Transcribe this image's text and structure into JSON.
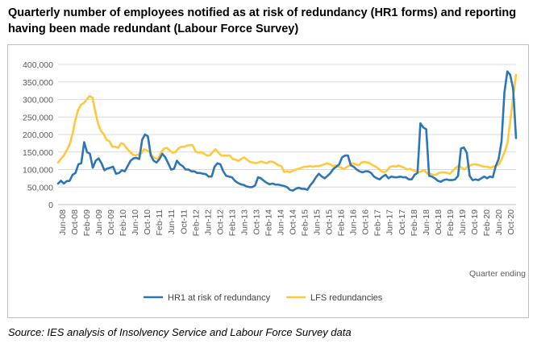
{
  "title": "Quarterly number of employees notified as at risk of redundancy (HR1 forms) and reporting having been made redundant (Labour Force Survey)",
  "source": "Source: IES analysis of Insolvency Service and Labour Force Survey data",
  "chart_data": {
    "type": "line",
    "xlabel": "Quarter ending",
    "ylabel": "",
    "ylim": [
      0,
      400000
    ],
    "yticks": [
      "0",
      "50,000",
      "100,000",
      "150,000",
      "200,000",
      "250,000",
      "300,000",
      "350,000",
      "400,000"
    ],
    "xtick_labels": [
      "Jun-08",
      "Oct-08",
      "Feb-09",
      "Jun-09",
      "Oct-09",
      "Feb-10",
      "Jun-10",
      "Oct-10",
      "Feb-11",
      "Jun-11",
      "Oct-11",
      "Feb-12",
      "Jun-12",
      "Oct-12",
      "Feb-13",
      "Jun-13",
      "Oct-13",
      "Feb-14",
      "Jun-14",
      "Oct-14",
      "Feb-15",
      "Jun-15",
      "Oct-15",
      "Feb-16",
      "Jun-16",
      "Oct-16",
      "Feb-17",
      "Jun-17",
      "Oct-17",
      "Feb-18",
      "Jun-18",
      "Oct-18",
      "Feb-19",
      "Jun-19",
      "Oct-19",
      "Feb-20",
      "Jun-20",
      "Oct-20"
    ],
    "grid": "horizontal",
    "legend": "bottom",
    "series": [
      {
        "name": "HR1 at risk of redundancy",
        "color": "#2e75b6",
        "values": [
          60000,
          68000,
          60000,
          67000,
          68000,
          85000,
          90000,
          115000,
          118000,
          178000,
          150000,
          145000,
          105000,
          125000,
          132000,
          118000,
          98000,
          103000,
          105000,
          108000,
          88000,
          90000,
          98000,
          95000,
          110000,
          125000,
          132000,
          133000,
          130000,
          185000,
          200000,
          195000,
          140000,
          125000,
          120000,
          130000,
          145000,
          135000,
          118000,
          100000,
          102000,
          125000,
          115000,
          110000,
          100000,
          100000,
          95000,
          95000,
          90000,
          90000,
          88000,
          87000,
          80000,
          80000,
          108000,
          118000,
          115000,
          95000,
          82000,
          80000,
          78000,
          68000,
          62000,
          58000,
          56000,
          52000,
          50000,
          50000,
          55000,
          78000,
          75000,
          68000,
          62000,
          58000,
          60000,
          57000,
          57000,
          55000,
          53000,
          50000,
          42000,
          40000,
          45000,
          48000,
          45000,
          45000,
          42000,
          55000,
          65000,
          78000,
          88000,
          80000,
          75000,
          82000,
          90000,
          102000,
          108000,
          115000,
          135000,
          140000,
          140000,
          112000,
          108000,
          100000,
          95000,
          92000,
          95000,
          95000,
          90000,
          80000,
          75000,
          72000,
          80000,
          85000,
          75000,
          80000,
          78000,
          78000,
          80000,
          78000,
          78000,
          72000,
          72000,
          85000,
          90000,
          232000,
          220000,
          215000,
          82000,
          80000,
          75000,
          68000,
          65000,
          70000,
          72000,
          70000,
          70000,
          72000,
          82000,
          160000,
          163000,
          148000,
          82000,
          70000,
          72000,
          70000,
          75000,
          80000,
          75000,
          80000,
          78000,
          110000,
          130000,
          180000,
          320000,
          380000,
          370000,
          330000,
          190000
        ]
      },
      {
        "name": "LFS redundancies",
        "color": "#ffc83d",
        "values": [
          120000,
          130000,
          140000,
          155000,
          170000,
          200000,
          240000,
          270000,
          285000,
          290000,
          300000,
          310000,
          305000,
          265000,
          230000,
          210000,
          200000,
          185000,
          180000,
          165000,
          165000,
          162000,
          175000,
          172000,
          160000,
          152000,
          143000,
          140000,
          143000,
          145000,
          158000,
          155000,
          150000,
          138000,
          132000,
          130000,
          150000,
          160000,
          162000,
          155000,
          148000,
          150000,
          160000,
          165000,
          165000,
          168000,
          170000,
          170000,
          152000,
          148000,
          150000,
          145000,
          140000,
          140000,
          150000,
          158000,
          148000,
          140000,
          140000,
          140000,
          140000,
          130000,
          128000,
          125000,
          130000,
          135000,
          128000,
          122000,
          120000,
          118000,
          120000,
          123000,
          120000,
          118000,
          123000,
          122000,
          118000,
          112000,
          110000,
          93000,
          95000,
          92000,
          96000,
          100000,
          102000,
          105000,
          108000,
          108000,
          110000,
          108000,
          110000,
          110000,
          112000,
          115000,
          118000,
          115000,
          110000,
          112000,
          108000,
          105000,
          102000,
          108000,
          112000,
          118000,
          115000,
          112000,
          120000,
          122000,
          120000,
          118000,
          112000,
          108000,
          102000,
          95000,
          92000,
          98000,
          108000,
          110000,
          108000,
          112000,
          108000,
          105000,
          100000,
          102000,
          98000,
          95000,
          92000,
          95000,
          98000,
          88000,
          88000,
          85000,
          85000,
          90000,
          92000,
          92000,
          90000,
          88000,
          98000,
          105000,
          112000,
          105000,
          100000,
          108000,
          112000,
          115000,
          115000,
          113000,
          110000,
          108000,
          108000,
          105000,
          108000,
          110000,
          115000,
          130000,
          150000,
          175000,
          240000,
          310000,
          370000
        ]
      }
    ]
  }
}
